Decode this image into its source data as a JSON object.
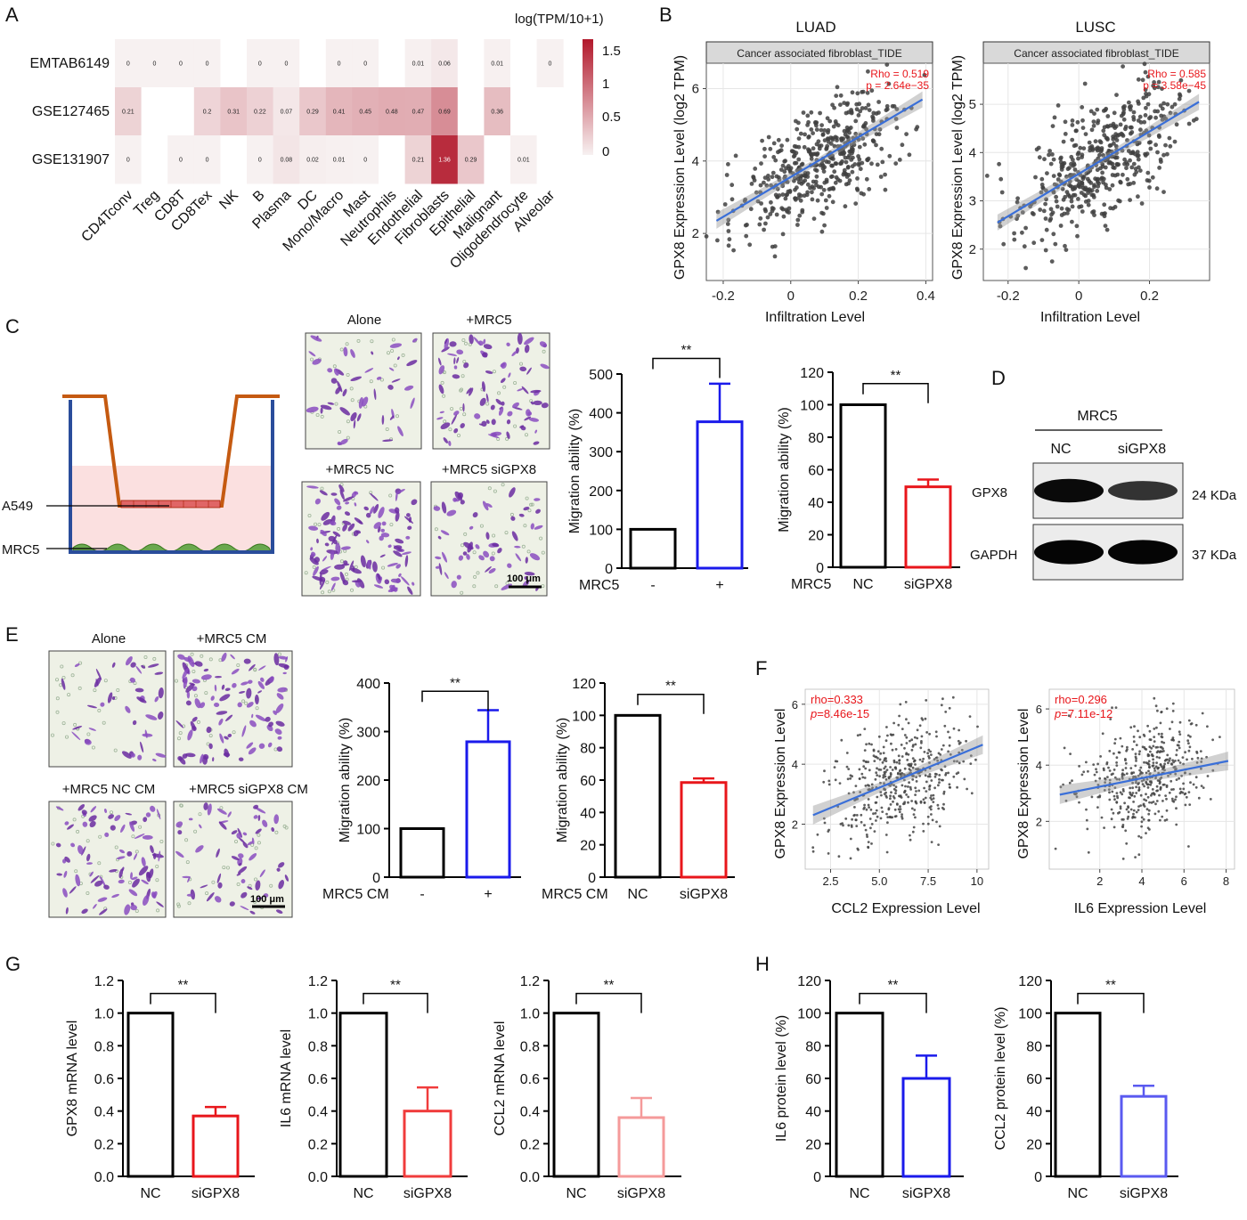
{
  "panels": {
    "A": {
      "label": "A",
      "colorbar": {
        "title": "log(TPM/10+1)",
        "ticks": [
          "1.5",
          "1",
          "0.5",
          "0"
        ],
        "max": 1.5,
        "color_low": "#f7f1f1",
        "color_high": "#b2182b"
      },
      "missing_color": "#ffffff"
    },
    "B": {
      "label": "B",
      "plots": [
        {
          "title": "LUAD",
          "strip": "Cancer associated fibroblast_TIDE",
          "rho_text": "Rho = 0.519",
          "p_text": "p = 2.64e−35",
          "xlabel": "Infiltration Level",
          "ylabel": "GPX8 Expression Level (log2 TPM)",
          "xticks": [
            "-0.2",
            "0",
            "0.2",
            "0.4"
          ],
          "yticks": [
            "2",
            "4",
            "6"
          ]
        },
        {
          "title": "LUSC",
          "strip": "Cancer associated fibroblast_TIDE",
          "rho_text": "Rho = 0.585",
          "p_text": "p = 3.58e−45",
          "xlabel": "Infiltration Level",
          "ylabel": "GPX8 Expression Level (log2 TPM)",
          "xticks": [
            "-0.2",
            "0",
            "0.2"
          ],
          "yticks": [
            "2",
            "3",
            "4",
            "5"
          ]
        }
      ]
    },
    "C": {
      "label": "C",
      "insert_label": "A549",
      "well_label": "MRC5",
      "micrographs": [
        "Alone",
        "+MRC5",
        "+MRC5 NC",
        "+MRC5 siGPX8"
      ],
      "scale_bar": "100 μm"
    },
    "D": {
      "label": "D",
      "header": "MRC5",
      "lanes": [
        "NC",
        "siGPX8"
      ],
      "bands": [
        {
          "name": "GPX8",
          "size": "24 KDa",
          "intensity": [
            0.95,
            0.55
          ]
        },
        {
          "name": "GAPDH",
          "size": "37 KDa",
          "intensity": [
            1.0,
            1.0
          ]
        }
      ]
    },
    "E": {
      "label": "E",
      "micrographs": [
        "Alone",
        "+MRC5 CM",
        "+MRC5 NC CM",
        "+MRC5 siGPX8 CM"
      ],
      "scale_bar": "100 μm"
    },
    "F": {
      "label": "F",
      "plots": [
        {
          "rho_text": "rho=0.333",
          "p_prefix": "p",
          "p_value": "=8.46e-15",
          "xlabel": "CCL2 Expression Level",
          "ylabel": "GPX8 Expression Level",
          "xticks": [
            "2.5",
            "5.0",
            "7.5",
            "10"
          ],
          "yticks": [
            "2",
            "4",
            "6"
          ]
        },
        {
          "rho_text": "rho=0.296",
          "p_prefix": "p",
          "p_value": "=7.11e-12",
          "xlabel": "IL6 Expression Level",
          "ylabel": "GPX8 Expression Level",
          "xticks": [
            "2",
            "4",
            "6",
            "8"
          ],
          "yticks": [
            "2",
            "4",
            "6"
          ]
        }
      ]
    },
    "G": {
      "label": "G"
    },
    "H": {
      "label": "H"
    }
  },
  "chart_data": [
    {
      "type": "heatmap",
      "panel": "A",
      "legend_title": "log(TPM/10+1)",
      "rows": [
        "EMTAB6149",
        "GSE127465",
        "GSE131907"
      ],
      "columns": [
        "CD4Tconv",
        "Treg",
        "CD8T",
        "CD8Tex",
        "NK",
        "B",
        "Plasma",
        "DC",
        "Mono/Macro",
        "Mast",
        "Neutrophils",
        "Endothelial",
        "Fibroblasts",
        "Epithelial",
        "Malignant",
        "Oligodendrocyte",
        "Alveolar"
      ],
      "values": [
        [
          0,
          0,
          0,
          0,
          null,
          0,
          0,
          null,
          0,
          0,
          null,
          0.01,
          0.06,
          null,
          0.01,
          null,
          0
        ],
        [
          0.21,
          null,
          null,
          0.2,
          0.31,
          0.22,
          0.07,
          0.29,
          0.41,
          0.45,
          0.48,
          0.47,
          0.69,
          null,
          0.36,
          null,
          null
        ],
        [
          0,
          null,
          0,
          0,
          null,
          0,
          0.08,
          0.02,
          0.01,
          0,
          null,
          0.21,
          1.36,
          0.29,
          null,
          0.01,
          null
        ]
      ],
      "value_labels": [
        [
          "0",
          "0",
          "0",
          "0",
          "",
          "0",
          "0",
          "",
          "0",
          "0",
          "",
          "0.01",
          "0.06",
          "",
          "0.01",
          "",
          "0"
        ],
        [
          "0.21",
          "",
          "",
          "0.2",
          "0.31",
          "0.22",
          "0.07",
          "0.29",
          "0.41",
          "0.45",
          "0.48",
          "0.47",
          "0.69",
          "",
          "0.36",
          "",
          ""
        ],
        [
          "0",
          "",
          "0",
          "0",
          "",
          "0",
          "0.08",
          "0.02",
          "0.01",
          "0",
          "",
          "0.21",
          "1.36",
          "0.29",
          "",
          "0.01",
          ""
        ]
      ],
      "range": [
        0,
        1.5
      ]
    },
    {
      "type": "scatter",
      "panel": "B",
      "title": "LUAD",
      "xlabel": "Infiltration Level",
      "ylabel": "GPX8 Expression Level (log2 TPM)",
      "xlim": [
        -0.25,
        0.42
      ],
      "ylim": [
        0.7,
        6.7
      ],
      "n_points": 480,
      "fit": {
        "x0": -0.22,
        "y0": 2.35,
        "x1": 0.39,
        "y1": 5.7
      },
      "rho": 0.519,
      "p": "2.64e-35",
      "grid": true
    },
    {
      "type": "scatter",
      "panel": "B",
      "title": "LUSC",
      "xlabel": "Infiltration Level",
      "ylabel": "GPX8 Expression Level (log2 TPM)",
      "xlim": [
        -0.27,
        0.37
      ],
      "ylim": [
        1.35,
        5.85
      ],
      "n_points": 480,
      "fit": {
        "x0": -0.23,
        "y0": 2.55,
        "x1": 0.34,
        "y1": 5.05
      },
      "rho": 0.585,
      "p": "3.58e-45",
      "grid": true
    },
    {
      "type": "bar",
      "panel": "C",
      "xlabel": "MRC5",
      "ylabel": "Migration ability (%)",
      "categories": [
        "-",
        "+"
      ],
      "values": [
        100,
        377
      ],
      "errors": [
        0,
        98
      ],
      "ylim": [
        0,
        500
      ],
      "yticks": [
        0,
        100,
        200,
        300,
        400,
        500
      ],
      "colors": [
        "#000000",
        "#1a1aeb"
      ],
      "significance": "**"
    },
    {
      "type": "bar",
      "panel": "C",
      "xlabel": "MRC5",
      "ylabel": "Migration ability (%)",
      "categories": [
        "NC",
        "siGPX8"
      ],
      "values": [
        100,
        49.5
      ],
      "errors": [
        0,
        4.5
      ],
      "ylim": [
        0,
        120
      ],
      "yticks": [
        0,
        20,
        40,
        60,
        80,
        100,
        120
      ],
      "colors": [
        "#000000",
        "#e8161b"
      ],
      "significance": "**"
    },
    {
      "type": "bar",
      "panel": "E",
      "xlabel": "MRC5 CM",
      "ylabel": "Migration ability (%)",
      "categories": [
        "-",
        "+"
      ],
      "values": [
        100,
        279
      ],
      "errors": [
        0,
        65
      ],
      "ylim": [
        0,
        400
      ],
      "yticks": [
        0,
        100,
        200,
        300,
        400
      ],
      "colors": [
        "#000000",
        "#1a1aeb"
      ],
      "significance": "**"
    },
    {
      "type": "bar",
      "panel": "E",
      "xlabel": "MRC5 CM",
      "ylabel": "Migration ability (%)",
      "categories": [
        "NC",
        "siGPX8"
      ],
      "values": [
        100,
        58.5
      ],
      "errors": [
        0,
        2.5
      ],
      "ylim": [
        0,
        120
      ],
      "yticks": [
        0,
        20,
        40,
        60,
        80,
        100,
        120
      ],
      "colors": [
        "#000000",
        "#e8161b"
      ],
      "significance": "**"
    },
    {
      "type": "scatter",
      "panel": "F",
      "xlabel": "CCL2 Expression Level",
      "ylabel": "GPX8 Expression Level",
      "xlim": [
        1.2,
        10.6
      ],
      "ylim": [
        0.5,
        6.5
      ],
      "n_points": 480,
      "fit": {
        "x0": 1.6,
        "y0": 2.3,
        "x1": 10.3,
        "y1": 4.65
      },
      "rho": 0.333,
      "p": "8.46e-15",
      "grid": true
    },
    {
      "type": "scatter",
      "panel": "F",
      "xlabel": "IL6 Expression Level",
      "ylabel": "GPX8 Expression Level",
      "xlim": [
        -0.4,
        8.4
      ],
      "ylim": [
        0.3,
        6.7
      ],
      "n_points": 480,
      "fit": {
        "x0": 0.1,
        "y0": 2.95,
        "x1": 8.1,
        "y1": 4.15
      },
      "rho": 0.296,
      "p": "7.11e-12",
      "grid": true
    },
    {
      "type": "bar",
      "panel": "G",
      "ylabel": "GPX8 mRNA level",
      "categories": [
        "NC",
        "siGPX8"
      ],
      "values": [
        1.0,
        0.37
      ],
      "errors": [
        0,
        0.055
      ],
      "ylim": [
        0,
        1.2
      ],
      "yticks": [
        "0.0",
        "0.2",
        "0.4",
        "0.6",
        "0.8",
        "1.0",
        "1.2"
      ],
      "colors": [
        "#000000",
        "#e8161b"
      ],
      "significance": "**"
    },
    {
      "type": "bar",
      "panel": "G",
      "ylabel": "IL6 mRNA level",
      "categories": [
        "NC",
        "siGPX8"
      ],
      "values": [
        1.0,
        0.4
      ],
      "errors": [
        0,
        0.145
      ],
      "ylim": [
        0,
        1.2
      ],
      "yticks": [
        "0.0",
        "0.2",
        "0.4",
        "0.6",
        "0.8",
        "1.0",
        "1.2"
      ],
      "colors": [
        "#000000",
        "#f03c3c"
      ],
      "significance": "**"
    },
    {
      "type": "bar",
      "panel": "G",
      "ylabel": "CCL2 mRNA level",
      "categories": [
        "NC",
        "siGPX8"
      ],
      "values": [
        1.0,
        0.36
      ],
      "errors": [
        0,
        0.12
      ],
      "ylim": [
        0,
        1.2
      ],
      "yticks": [
        "0.0",
        "0.2",
        "0.4",
        "0.6",
        "0.8",
        "1.0",
        "1.2"
      ],
      "colors": [
        "#000000",
        "#f59a9a"
      ],
      "significance": "**"
    },
    {
      "type": "bar",
      "panel": "H",
      "ylabel": "IL6 protein level (%)",
      "categories": [
        "NC",
        "siGPX8"
      ],
      "values": [
        100,
        60
      ],
      "errors": [
        0,
        14
      ],
      "ylim": [
        0,
        120
      ],
      "yticks": [
        "0",
        "20",
        "40",
        "60",
        "80",
        "100",
        "120"
      ],
      "colors": [
        "#000000",
        "#1a1aeb"
      ],
      "significance": "**"
    },
    {
      "type": "bar",
      "panel": "H",
      "ylabel": "CCL2 protein level (%)",
      "categories": [
        "NC",
        "siGPX8"
      ],
      "values": [
        100,
        49
      ],
      "errors": [
        0,
        6.5
      ],
      "ylim": [
        0,
        120
      ],
      "yticks": [
        "0",
        "20",
        "40",
        "60",
        "80",
        "100",
        "120"
      ],
      "colors": [
        "#000000",
        "#5a5af0"
      ],
      "significance": "**"
    }
  ]
}
